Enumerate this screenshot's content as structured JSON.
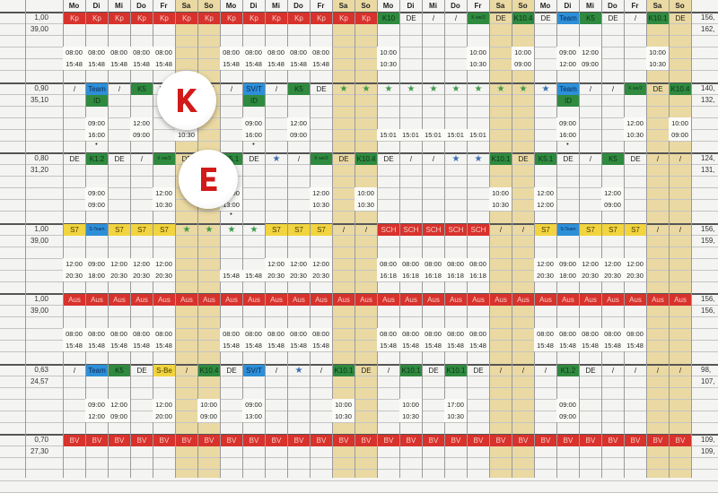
{
  "header": {
    "days": [
      "Mo",
      "Di",
      "Mi",
      "Do",
      "Fr",
      "Sa",
      "So",
      "Mo",
      "Di",
      "Mi",
      "Do",
      "Fr",
      "Sa",
      "So",
      "Mo",
      "Di",
      "Mi",
      "Do",
      "Fr",
      "Sa",
      "So",
      "Mo",
      "Di",
      "Mi",
      "Do",
      "Fr",
      "Sa",
      "So"
    ]
  },
  "colors": {
    "red": "#d8322d",
    "green": "#2f8a3f",
    "blue": "#2d8fd8",
    "yellow": "#f1d43f",
    "weekend": "#ead9a2",
    "sticker_letter": "#d21a1a"
  },
  "code_styles": {
    "Kp": "red",
    "Aus": "red",
    "BV": "red",
    "SCH": "red",
    "K10": "green",
    "K we/2": "green",
    "K10.4": "green",
    "K5": "green",
    "K10.1": "green",
    "K1.2": "green",
    "K5.1": "green",
    "ID": "green",
    "K": "green",
    "Team": "blue",
    "SV/T": "blue",
    "S-Team": "blue",
    "S7": "yellow",
    "S-Be": "yellow",
    "star": "star",
    "star-blue": "star-blue"
  },
  "stickers": [
    {
      "letter": "K"
    },
    {
      "letter": "E"
    }
  ],
  "blocks": [
    {
      "left": [
        "1,00",
        "39,00"
      ],
      "right": [
        "156,",
        "162,"
      ],
      "codes": [
        "Kp",
        "Kp",
        "Kp",
        "Kp",
        "Kp",
        "Kp",
        "Kp",
        "Kp",
        "Kp",
        "Kp",
        "Kp",
        "Kp",
        "Kp",
        "Kp",
        "K10",
        "DE",
        "/",
        "/",
        "K we/2",
        "DE",
        "K10.4",
        "DE",
        "Team",
        "K5",
        "DE",
        "/",
        "K10.1",
        "DE"
      ],
      "sub": [
        "",
        "",
        "",
        "",
        "",
        "",
        "",
        "",
        "",
        "",
        "",
        "",
        "",
        "",
        "",
        "",
        "",
        "",
        "",
        "",
        "",
        "",
        "",
        "",
        "",
        "",
        "",
        ""
      ],
      "t1": [
        "08:00",
        "08:00",
        "08:00",
        "08:00",
        "08:00",
        "",
        "",
        "08:00",
        "08:00",
        "08:00",
        "08:00",
        "08:00",
        "",
        "",
        "10:00",
        "",
        "",
        "",
        "10:00",
        "",
        "10:00",
        "",
        "09:00",
        "12:00",
        "",
        "",
        "10:00",
        ""
      ],
      "t2": [
        "15:48",
        "15:48",
        "15:48",
        "15:48",
        "15:48",
        "",
        "",
        "15:48",
        "15:48",
        "15:48",
        "15:48",
        "15:48",
        "",
        "",
        "10:30",
        "",
        "",
        "",
        "10:30",
        "",
        "09:00",
        "",
        "12:00",
        "09:00",
        "",
        "",
        "10:30",
        ""
      ],
      "dots": [
        "",
        "",
        "",
        "",
        "",
        "",
        "",
        "",
        "",
        "",
        "",
        "",
        "",
        "",
        "",
        "",
        "",
        "",
        "",
        "",
        "",
        "",
        "",
        "",
        "",
        "",
        "",
        ""
      ]
    },
    {
      "left": [
        "0,90",
        "35,10"
      ],
      "right": [
        "140,",
        "132,"
      ],
      "codes": [
        "/",
        "Team",
        "/",
        "K5",
        "DE",
        "K",
        "DE",
        "/",
        "SV/T",
        "/",
        "K5",
        "DE",
        "star",
        "star",
        "star",
        "star",
        "star",
        "star",
        "star",
        "star",
        "star",
        "star-blue",
        "Team",
        "/",
        "/",
        "K we/2",
        "DE",
        "K10.4"
      ],
      "sub": [
        "",
        "ID",
        "",
        "",
        "",
        "",
        "",
        "",
        "ID",
        "",
        "",
        "",
        "",
        "",
        "",
        "",
        "",
        "",
        "",
        "",
        "",
        "",
        "ID",
        "",
        "",
        "",
        "",
        ""
      ],
      "t1": [
        "",
        "09:00",
        "",
        "12:00",
        "",
        "10:00",
        "",
        "",
        "09:00",
        "",
        "12:00",
        "",
        "",
        "",
        "",
        "",
        "",
        "",
        "",
        "",
        "",
        "",
        "09:00",
        "",
        "",
        "12:00",
        "",
        "10:00"
      ],
      "t2": [
        "",
        "16:00",
        "",
        "09:00",
        "",
        "10:30",
        "",
        "",
        "16:00",
        "",
        "09:00",
        "",
        "",
        "",
        "15:01",
        "15:01",
        "15:01",
        "15:01",
        "15:01",
        "",
        "",
        "",
        "16:00",
        "",
        "",
        "10:30",
        "",
        "09:00"
      ],
      "dots": [
        "",
        "•",
        "",
        "",
        "",
        "",
        "",
        "",
        "•",
        "",
        "",
        "",
        "",
        "",
        "",
        "",
        "",
        "",
        "",
        "",
        "",
        "",
        "•",
        "",
        "",
        "",
        "",
        ""
      ]
    },
    {
      "left": [
        "0,80",
        "31,20"
      ],
      "right": [
        "124,",
        "131,"
      ],
      "codes": [
        "DE",
        "K1.2",
        "DE",
        "/",
        "K we/2",
        "DE",
        "/",
        "K5.1",
        "DE",
        "star-blue",
        "/",
        "K we/2",
        "DE",
        "K10.4",
        "DE",
        "/",
        "/",
        "star-blue",
        "star-blue",
        "K10.1",
        "DE",
        "K5.1",
        "DE",
        "/",
        "K5",
        "DE",
        "/",
        "/"
      ],
      "sub": [
        "",
        "",
        "",
        "",
        "",
        "",
        "",
        "",
        "",
        "",
        "",
        "",
        "",
        "",
        "",
        "",
        "",
        "",
        "",
        "",
        "",
        "",
        "",
        "",
        "",
        "",
        "",
        ""
      ],
      "t1": [
        "",
        "09:00",
        "",
        "",
        "12:00",
        "",
        "",
        "12:00",
        "",
        "",
        "",
        "12:00",
        "",
        "10:00",
        "",
        "",
        "",
        "",
        "",
        "10:00",
        "",
        "12:00",
        "",
        "",
        "12:00",
        "",
        "",
        ""
      ],
      "t2": [
        "",
        "09:00",
        "",
        "",
        "10:30",
        "",
        "",
        "13:00",
        "",
        "",
        "",
        "10:30",
        "",
        "10:30",
        "",
        "",
        "",
        "",
        "",
        "10:30",
        "",
        "12:00",
        "",
        "",
        "09:00",
        "",
        "",
        ""
      ],
      "dots": [
        "",
        "",
        "",
        "",
        "",
        "",
        "",
        "•",
        "",
        "",
        "",
        "",
        "",
        "",
        "",
        "",
        "",
        "",
        "",
        "",
        "",
        "",
        "",
        "",
        "",
        "",
        "",
        ""
      ]
    },
    {
      "left": [
        "1,00",
        "39,00"
      ],
      "right": [
        "156,",
        "159,"
      ],
      "codes": [
        "S7",
        "S-Team",
        "S7",
        "S7",
        "S7",
        "star",
        "star",
        "star",
        "star",
        "S7",
        "S7",
        "S7",
        "/",
        "/",
        "SCH",
        "SCH",
        "SCH",
        "SCH",
        "SCH",
        "/",
        "/",
        "S7",
        "S-Team",
        "S7",
        "S7",
        "S7",
        "/",
        "/"
      ],
      "sub": [
        "",
        "",
        "",
        "",
        "",
        "",
        "",
        "",
        "",
        "",
        "",
        "",
        "",
        "",
        "",
        "",
        "",
        "",
        "",
        "",
        "",
        "",
        "",
        "",
        "",
        "",
        "",
        ""
      ],
      "t1": [
        "12:00",
        "09:00",
        "12:00",
        "12:00",
        "12:00",
        "",
        "",
        "",
        "",
        "12:00",
        "12:00",
        "12:00",
        "",
        "",
        "08:00",
        "08:00",
        "08:00",
        "08:00",
        "08:00",
        "",
        "",
        "12:00",
        "09:00",
        "12:00",
        "12:00",
        "12:00",
        "",
        ""
      ],
      "t2": [
        "20:30",
        "18:00",
        "20:30",
        "20:30",
        "20:30",
        "",
        "",
        "15:48",
        "15:48",
        "20:30",
        "20:30",
        "20:30",
        "",
        "",
        "16:18",
        "16:18",
        "16:18",
        "16:18",
        "16:18",
        "",
        "",
        "20:30",
        "18:00",
        "20:30",
        "20:30",
        "20:30",
        "",
        ""
      ],
      "dots": [
        "",
        "",
        "",
        "",
        "",
        "",
        "",
        "",
        "",
        "",
        "",
        "",
        "",
        "",
        "",
        "",
        "",
        "",
        "",
        "",
        "",
        "",
        "",
        "",
        "",
        "",
        "",
        ""
      ]
    },
    {
      "left": [
        "1,00",
        "39,00"
      ],
      "right": [
        "156,",
        "156,"
      ],
      "codes": [
        "Aus",
        "Aus",
        "Aus",
        "Aus",
        "Aus",
        "Aus",
        "Aus",
        "Aus",
        "Aus",
        "Aus",
        "Aus",
        "Aus",
        "Aus",
        "Aus",
        "Aus",
        "Aus",
        "Aus",
        "Aus",
        "Aus",
        "Aus",
        "Aus",
        "Aus",
        "Aus",
        "Aus",
        "Aus",
        "Aus",
        "Aus",
        "Aus"
      ],
      "sub": [
        "",
        "",
        "",
        "",
        "",
        "",
        "",
        "",
        "",
        "",
        "",
        "",
        "",
        "",
        "",
        "",
        "",
        "",
        "",
        "",
        "",
        "",
        "",
        "",
        "",
        "",
        "",
        ""
      ],
      "t1": [
        "08:00",
        "08:00",
        "08:00",
        "08:00",
        "08:00",
        "",
        "",
        "08:00",
        "08:00",
        "08:00",
        "08:00",
        "08:00",
        "",
        "",
        "08:00",
        "08:00",
        "08:00",
        "08:00",
        "08:00",
        "",
        "",
        "08:00",
        "08:00",
        "08:00",
        "08:00",
        "08:00",
        "",
        ""
      ],
      "t2": [
        "15:48",
        "15:48",
        "15:48",
        "15:48",
        "15:48",
        "",
        "",
        "15:48",
        "15:48",
        "15:48",
        "15:48",
        "15:48",
        "",
        "",
        "15:48",
        "15:48",
        "15:48",
        "15:48",
        "15:48",
        "",
        "",
        "15:48",
        "15:48",
        "15:48",
        "15:48",
        "15:48",
        "",
        ""
      ],
      "dots": [
        "",
        "",
        "",
        "",
        "",
        "",
        "",
        "",
        "",
        "",
        "",
        "",
        "",
        "",
        "",
        "",
        "",
        "",
        "",
        "",
        "",
        "",
        "",
        "",
        "",
        "",
        "",
        ""
      ]
    },
    {
      "left": [
        "0,63",
        "24,57"
      ],
      "right": [
        "98,",
        "107,"
      ],
      "codes": [
        "/",
        "Team",
        "K5",
        "DE",
        "S-Be",
        "/",
        "K10.4",
        "DE",
        "SV/T",
        "/",
        "star-blue",
        "/",
        "K10.1",
        "DE",
        "/",
        "K10.1",
        "DE",
        "K10.1",
        "DE",
        "/",
        "/",
        "/",
        "K1.2",
        "DE",
        "/",
        "/",
        "/",
        "/"
      ],
      "sub": [
        "",
        "",
        "",
        "",
        "",
        "",
        "",
        "",
        "",
        "",
        "",
        "",
        "",
        "",
        "",
        "",
        "",
        "",
        "",
        "",
        "",
        "",
        "",
        "",
        "",
        "",
        "",
        ""
      ],
      "t1": [
        "",
        "09:00",
        "12:00",
        "",
        "12:00",
        "",
        "10:00",
        "",
        "09:00",
        "",
        "",
        "",
        "10:00",
        "",
        "",
        "10:00",
        "",
        "17:00",
        "",
        "",
        "",
        "",
        "09:00",
        "",
        "",
        "",
        "",
        ""
      ],
      "t2": [
        "",
        "12:00",
        "09:00",
        "",
        "20:00",
        "",
        "09:00",
        "",
        "13:00",
        "",
        "",
        "",
        "10:30",
        "",
        "",
        "10:30",
        "",
        "10:30",
        "",
        "",
        "",
        "",
        "09:00",
        "",
        "",
        "",
        "",
        ""
      ],
      "dots": [
        "",
        "",
        "",
        "",
        "",
        "",
        "",
        "",
        "",
        "",
        "",
        "",
        "",
        "",
        "",
        "",
        "",
        "",
        "",
        "",
        "",
        "",
        "",
        "",
        "",
        "",
        "",
        ""
      ]
    },
    {
      "left": [
        "0,70",
        "27,30"
      ],
      "right": [
        "109,",
        "109,"
      ],
      "codes": [
        "BV",
        "BV",
        "BV",
        "BV",
        "BV",
        "BV",
        "BV",
        "BV",
        "BV",
        "BV",
        "BV",
        "BV",
        "BV",
        "BV",
        "BV",
        "BV",
        "BV",
        "BV",
        "BV",
        "BV",
        "BV",
        "BV",
        "BV",
        "BV",
        "BV",
        "BV",
        "BV",
        "BV"
      ],
      "sub": [
        "",
        "",
        "",
        "",
        "",
        "",
        "",
        "",
        "",
        "",
        "",
        "",
        "",
        "",
        "",
        "",
        "",
        "",
        "",
        "",
        "",
        "",
        "",
        "",
        "",
        "",
        "",
        ""
      ],
      "t1": [
        "",
        "",
        "",
        "",
        "",
        "",
        "",
        "",
        "",
        "",
        "",
        "",
        "",
        "",
        "",
        "",
        "",
        "",
        "",
        "",
        "",
        "",
        "",
        "",
        "",
        "",
        "",
        ""
      ],
      "t2": [
        "",
        "",
        "",
        "",
        "",
        "",
        "",
        "",
        "",
        "",
        "",
        "",
        "",
        "",
        "",
        "",
        "",
        "",
        "",
        "",
        "",
        "",
        "",
        "",
        "",
        "",
        "",
        ""
      ],
      "dots": [
        "",
        "",
        "",
        "",
        "",
        "",
        "",
        "",
        "",
        "",
        "",
        "",
        "",
        "",
        "",
        "",
        "",
        "",
        "",
        "",
        "",
        "",
        "",
        "",
        "",
        "",
        "",
        ""
      ]
    }
  ]
}
